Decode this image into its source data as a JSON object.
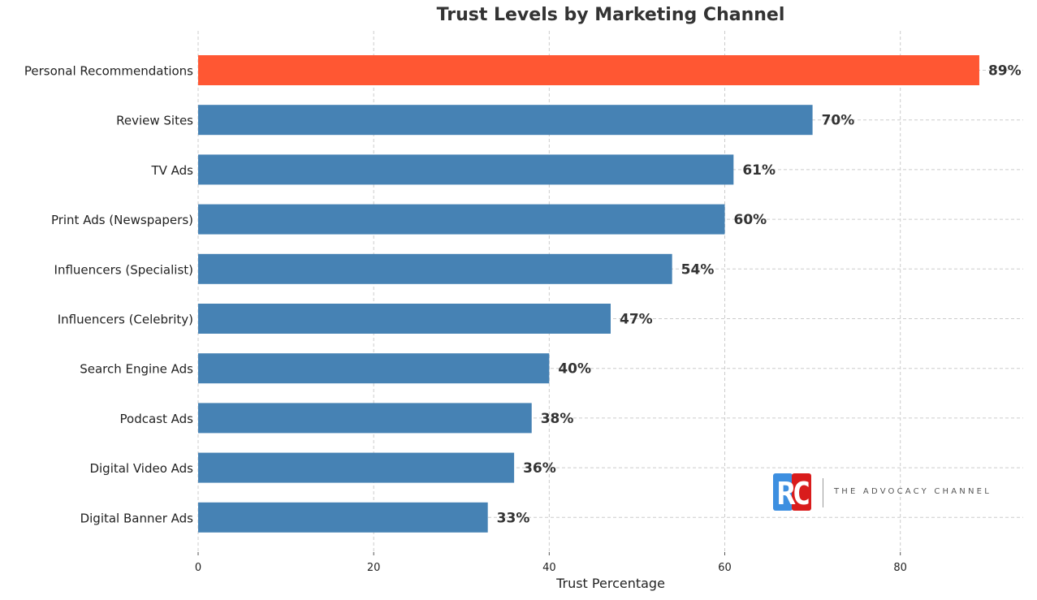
{
  "chart_data": {
    "type": "bar",
    "orientation": "horizontal",
    "title": "Trust Levels by Marketing Channel",
    "xlabel": "Trust Percentage",
    "ylabel": "",
    "xlim": [
      0,
      94
    ],
    "x_ticks": [
      0,
      20,
      40,
      60,
      80
    ],
    "grid": true,
    "categories": [
      "Personal Recommendations",
      "Review Sites",
      "TV Ads",
      "Print Ads (Newspapers)",
      "Influencers (Specialist)",
      "Influencers (Celebrity)",
      "Search Engine Ads",
      "Podcast Ads",
      "Digital Video Ads",
      "Digital Banner Ads"
    ],
    "values": [
      89,
      70,
      61,
      60,
      54,
      47,
      40,
      38,
      36,
      33
    ],
    "value_labels": [
      "89%",
      "70%",
      "61%",
      "60%",
      "54%",
      "47%",
      "40%",
      "38%",
      "36%",
      "33%"
    ],
    "colors": {
      "highlight": "#FF5733",
      "default": "#4682B4",
      "grid": "#cccccc",
      "label": "#333333"
    },
    "highlight_index": 0
  },
  "watermark": {
    "badge_text": "RC",
    "brand_name": "THE ADVOCACY CHANNEL",
    "colors": {
      "left": "#3d8fe0",
      "right": "#d91c1c"
    }
  }
}
